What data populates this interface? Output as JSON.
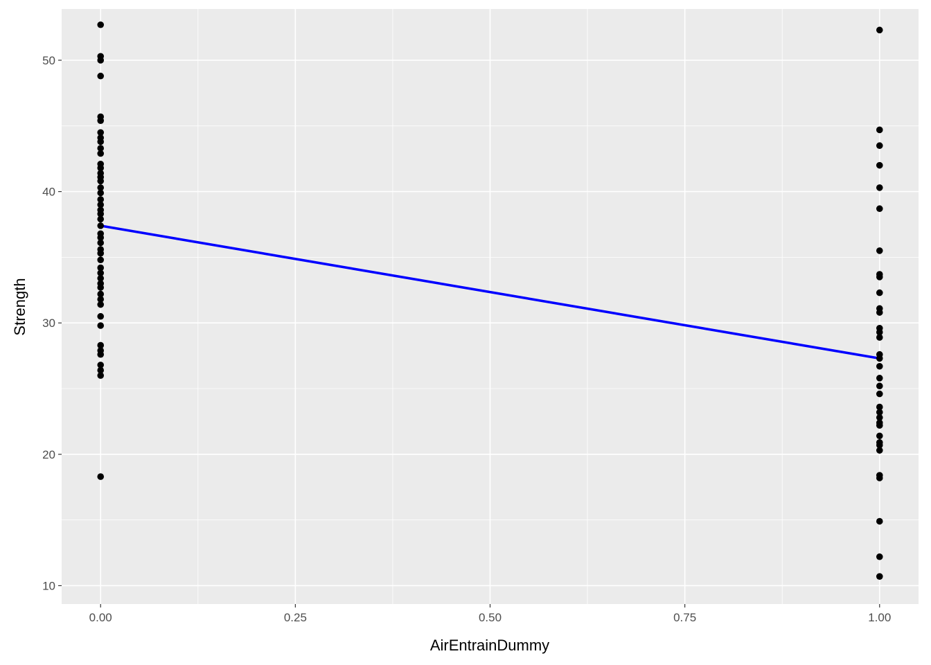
{
  "chart_data": {
    "type": "scatter",
    "title": "",
    "xlabel": "AirEntrainDummy",
    "ylabel": "Strength",
    "xlim": [
      -0.05,
      1.05
    ],
    "ylim": [
      8.6,
      53.9
    ],
    "x_ticks": [
      0.0,
      0.25,
      0.5,
      0.75,
      1.0
    ],
    "x_tick_labels": [
      "0.00",
      "0.25",
      "0.50",
      "0.75",
      "1.00"
    ],
    "y_ticks": [
      10,
      20,
      30,
      40,
      50
    ],
    "y_tick_labels": [
      "10",
      "20",
      "30",
      "40",
      "50"
    ],
    "grid": true,
    "series": [
      {
        "name": "observations",
        "kind": "points",
        "color": "#000000",
        "points": [
          [
            0,
            52.7
          ],
          [
            0,
            50.3
          ],
          [
            0,
            50.0
          ],
          [
            0,
            48.8
          ],
          [
            0,
            45.7
          ],
          [
            0,
            45.4
          ],
          [
            0,
            44.5
          ],
          [
            0,
            44.1
          ],
          [
            0,
            43.8
          ],
          [
            0,
            43.3
          ],
          [
            0,
            42.9
          ],
          [
            0,
            42.1
          ],
          [
            0,
            41.8
          ],
          [
            0,
            41.4
          ],
          [
            0,
            41.1
          ],
          [
            0,
            40.8
          ],
          [
            0,
            40.3
          ],
          [
            0,
            39.9
          ],
          [
            0,
            39.4
          ],
          [
            0,
            39.0
          ],
          [
            0,
            38.6
          ],
          [
            0,
            38.3
          ],
          [
            0,
            37.9
          ],
          [
            0,
            37.4
          ],
          [
            0,
            36.8
          ],
          [
            0,
            36.5
          ],
          [
            0,
            36.1
          ],
          [
            0,
            35.6
          ],
          [
            0,
            35.3
          ],
          [
            0,
            34.8
          ],
          [
            0,
            34.2
          ],
          [
            0,
            33.8
          ],
          [
            0,
            33.4
          ],
          [
            0,
            33.0
          ],
          [
            0,
            32.7
          ],
          [
            0,
            32.2
          ],
          [
            0,
            31.8
          ],
          [
            0,
            31.4
          ],
          [
            0,
            30.5
          ],
          [
            0,
            29.8
          ],
          [
            0,
            28.3
          ],
          [
            0,
            27.9
          ],
          [
            0,
            27.6
          ],
          [
            0,
            26.8
          ],
          [
            0,
            26.4
          ],
          [
            0,
            26.0
          ],
          [
            0,
            18.3
          ],
          [
            1,
            52.3
          ],
          [
            1,
            44.7
          ],
          [
            1,
            43.5
          ],
          [
            1,
            42.0
          ],
          [
            1,
            40.3
          ],
          [
            1,
            38.7
          ],
          [
            1,
            35.5
          ],
          [
            1,
            33.7
          ],
          [
            1,
            33.5
          ],
          [
            1,
            32.3
          ],
          [
            1,
            31.1
          ],
          [
            1,
            30.8
          ],
          [
            1,
            29.6
          ],
          [
            1,
            29.3
          ],
          [
            1,
            28.9
          ],
          [
            1,
            27.6
          ],
          [
            1,
            27.3
          ],
          [
            1,
            26.7
          ],
          [
            1,
            25.8
          ],
          [
            1,
            25.2
          ],
          [
            1,
            24.6
          ],
          [
            1,
            23.6
          ],
          [
            1,
            23.2
          ],
          [
            1,
            22.8
          ],
          [
            1,
            22.4
          ],
          [
            1,
            22.2
          ],
          [
            1,
            21.4
          ],
          [
            1,
            20.9
          ],
          [
            1,
            20.7
          ],
          [
            1,
            20.3
          ],
          [
            1,
            18.4
          ],
          [
            1,
            18.2
          ],
          [
            1,
            14.9
          ],
          [
            1,
            12.2
          ],
          [
            1,
            10.7
          ]
        ]
      },
      {
        "name": "linear fit",
        "kind": "line",
        "color": "#0000ff",
        "points": [
          [
            0,
            37.4
          ],
          [
            1,
            27.3
          ]
        ]
      }
    ]
  }
}
